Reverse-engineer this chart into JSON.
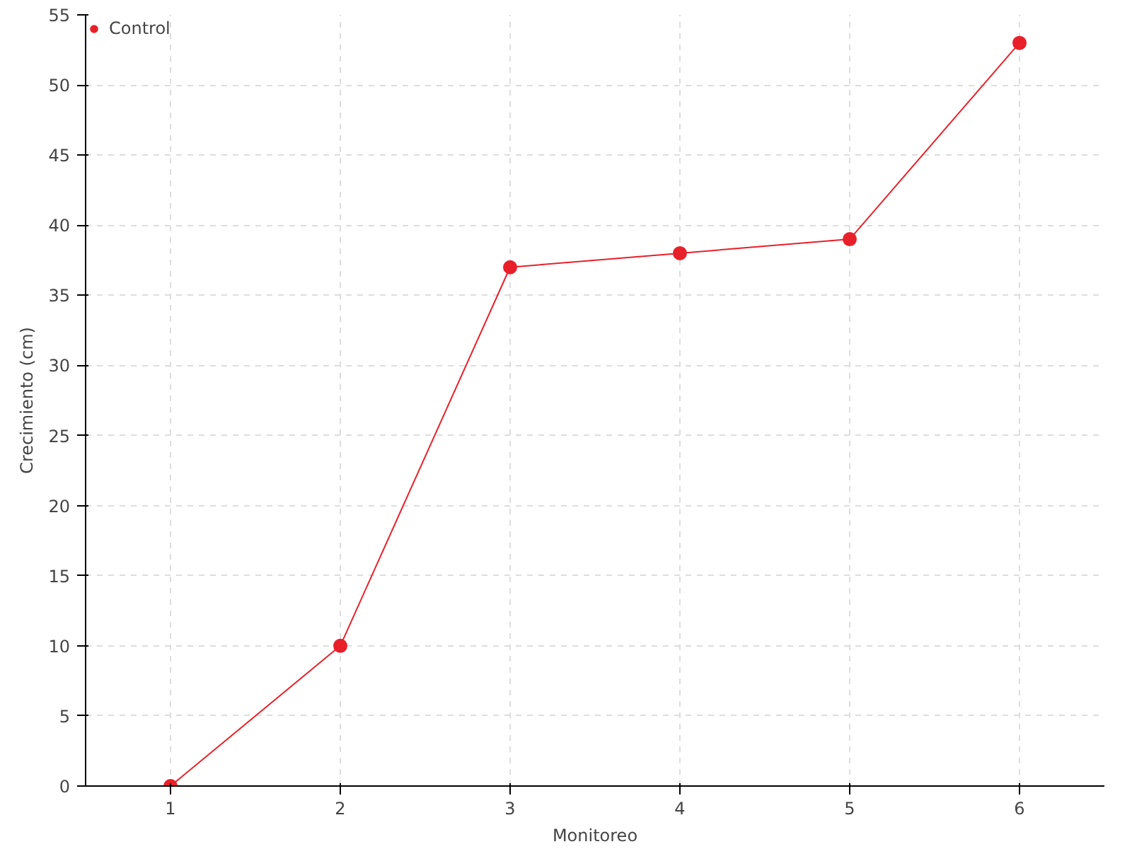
{
  "chart_data": {
    "type": "line",
    "xlabel": "Monitoreo",
    "ylabel": "Crecimiento (cm)",
    "x": [
      1,
      2,
      3,
      4,
      5,
      6
    ],
    "series": [
      {
        "name": "Control",
        "color": "#e8202a",
        "values": [
          0,
          10,
          37,
          38,
          39,
          53
        ]
      }
    ],
    "xlim": [
      0.5,
      6.5
    ],
    "xticks": [
      1,
      2,
      3,
      4,
      5,
      6
    ],
    "ylim": [
      0,
      55
    ],
    "yticks": [
      0,
      5,
      10,
      15,
      20,
      25,
      30,
      35,
      40,
      45,
      50,
      55
    ],
    "grid": true,
    "legend": "top left",
    "marker": "circle",
    "line_style": "solid"
  }
}
